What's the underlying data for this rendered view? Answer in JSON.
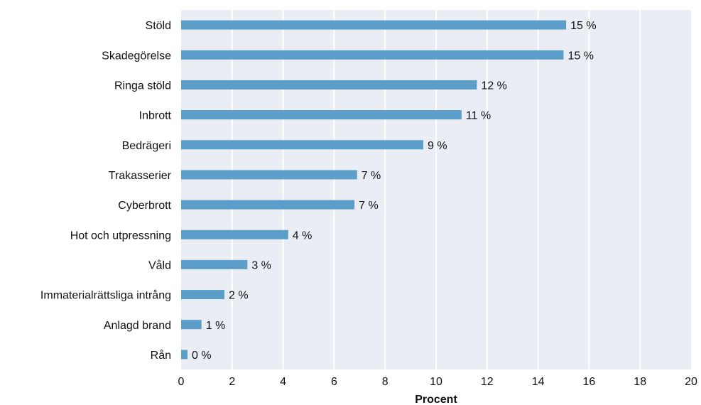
{
  "chart_data": {
    "type": "bar",
    "orientation": "horizontal",
    "categories": [
      "Stöld",
      "Skadegörelse",
      "Ringa stöld",
      "Inbrott",
      "Bedrägeri",
      "Trakasserier",
      "Cyberbrott",
      "Hot och utpressning",
      "Våld",
      "Immaterialrättsliga intrång",
      "Anlagd brand",
      "Rån"
    ],
    "values": [
      15.1,
      15.0,
      11.6,
      11.0,
      9.5,
      6.9,
      6.8,
      4.2,
      2.6,
      1.7,
      0.8,
      0.25
    ],
    "value_labels": [
      "15 %",
      "15 %",
      "12 %",
      "11 %",
      "9 %",
      "7 %",
      "7 %",
      "4 %",
      "3 %",
      "2 %",
      "1 %",
      "0 %"
    ],
    "xlabel": "Procent",
    "xlim": [
      0,
      20
    ],
    "xticks": [
      0,
      2,
      4,
      6,
      8,
      10,
      12,
      14,
      16,
      18,
      20
    ],
    "xtick_labels": [
      "0",
      "2",
      "4",
      "6",
      "8",
      "10",
      "12",
      "14",
      "16",
      "18",
      "20"
    ],
    "grid": true,
    "colors": {
      "bar": "#5b9ec9",
      "plot_background": "#eaeef4",
      "gridline": "#ffffff"
    }
  }
}
